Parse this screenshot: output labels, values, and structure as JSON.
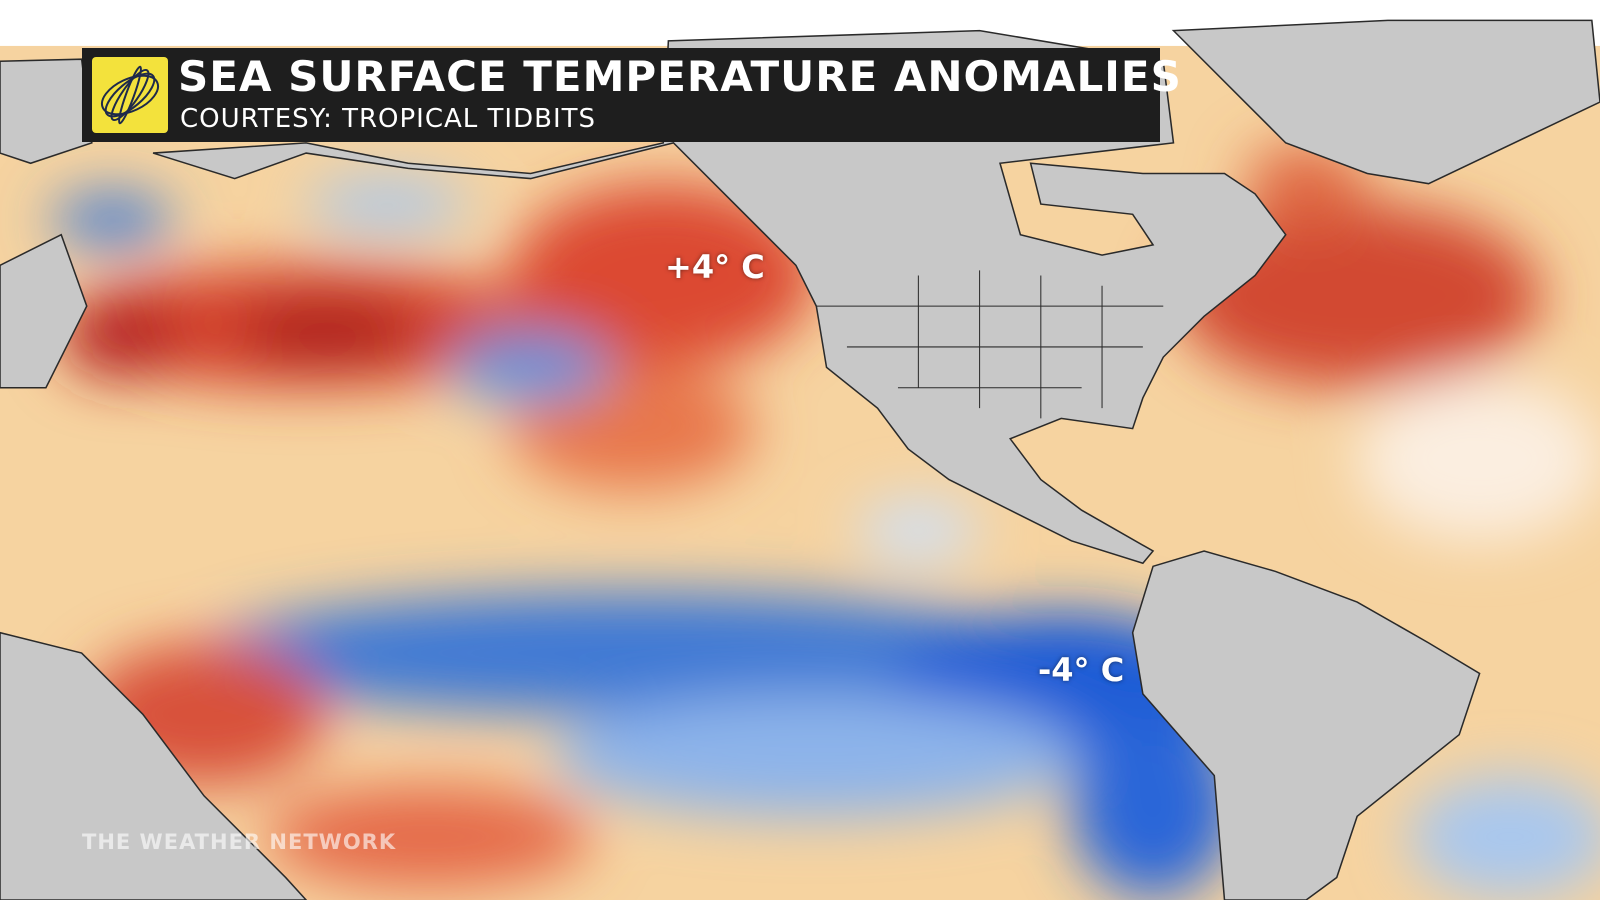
{
  "header": {
    "title": "SEA SURFACE TEMPERATURE ANOMALIES",
    "subtitle": "COURTESY: TROPICAL TIDBITS"
  },
  "annotations": [
    {
      "label": "+4° C"
    },
    {
      "label": "-4° C"
    }
  ],
  "watermark": "THE WEATHER NETWORK"
}
